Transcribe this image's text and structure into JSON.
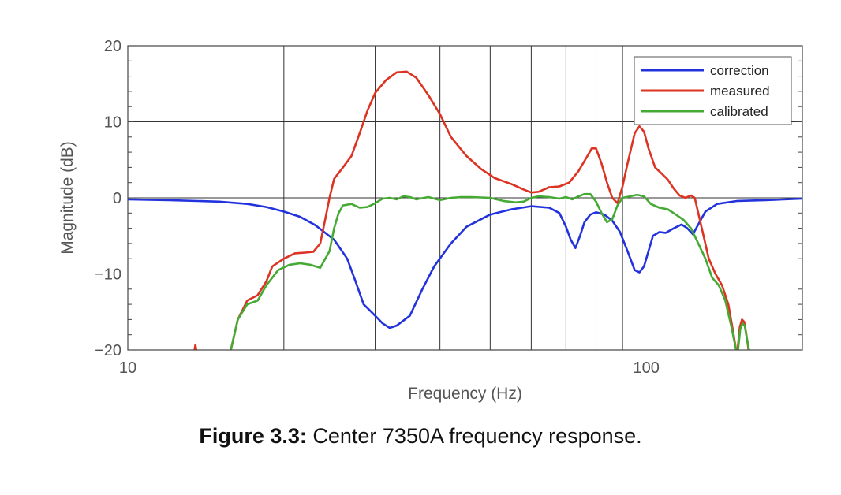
{
  "chart_data": {
    "type": "line",
    "xscale": "log",
    "xlim": [
      10,
      200
    ],
    "ylim": [
      -20,
      20
    ],
    "xticks": [
      10,
      100
    ],
    "xtick_labels": [
      "10",
      "100"
    ],
    "yticks": [
      -20,
      -10,
      0,
      10,
      20
    ],
    "ytick_labels": [
      "−20",
      "−10",
      "0",
      "10",
      "20"
    ],
    "vertical_gridlines": [
      20,
      30,
      40,
      50,
      60,
      70,
      80,
      90
    ],
    "grid": true,
    "xlabel": "Frequency (Hz)",
    "ylabel": "Magnitude (dB)",
    "legend_position": "top-right",
    "series": [
      {
        "name": "correction",
        "color": "#2233dd",
        "points": [
          [
            10,
            -0.2
          ],
          [
            12,
            -0.3
          ],
          [
            15,
            -0.5
          ],
          [
            17,
            -0.8
          ],
          [
            18.5,
            -1.2
          ],
          [
            20,
            -1.8
          ],
          [
            21.5,
            -2.5
          ],
          [
            23,
            -3.6
          ],
          [
            25,
            -5.5
          ],
          [
            26.5,
            -8
          ],
          [
            27.5,
            -11
          ],
          [
            28.5,
            -14
          ],
          [
            30,
            -15.5
          ],
          [
            31,
            -16.5
          ],
          [
            32,
            -17.1
          ],
          [
            33,
            -16.8
          ],
          [
            35,
            -15.5
          ],
          [
            37,
            -12
          ],
          [
            39,
            -9
          ],
          [
            42,
            -6
          ],
          [
            45,
            -3.8
          ],
          [
            50,
            -2.2
          ],
          [
            55,
            -1.5
          ],
          [
            60,
            -1.1
          ],
          [
            65,
            -1.3
          ],
          [
            68,
            -2
          ],
          [
            70,
            -3.8
          ],
          [
            71.5,
            -5.5
          ],
          [
            73,
            -6.6
          ],
          [
            74.5,
            -5
          ],
          [
            76,
            -3.2
          ],
          [
            78,
            -2.2
          ],
          [
            80,
            -1.9
          ],
          [
            83,
            -2.2
          ],
          [
            86,
            -3
          ],
          [
            89,
            -4.5
          ],
          [
            92,
            -7
          ],
          [
            95,
            -9.5
          ],
          [
            97,
            -9.8
          ],
          [
            99,
            -9
          ],
          [
            101,
            -7
          ],
          [
            103,
            -5
          ],
          [
            106,
            -4.5
          ],
          [
            109,
            -4.6
          ],
          [
            113,
            -4
          ],
          [
            117,
            -3.5
          ],
          [
            120,
            -4
          ],
          [
            123,
            -4.8
          ],
          [
            126,
            -3.5
          ],
          [
            130,
            -1.8
          ],
          [
            137,
            -0.8
          ],
          [
            150,
            -0.4
          ],
          [
            170,
            -0.3
          ],
          [
            200,
            -0.1
          ]
        ]
      },
      {
        "name": "measured",
        "color": "#dd3322",
        "points": [
          [
            15.8,
            -20
          ],
          [
            16.3,
            -16
          ],
          [
            17,
            -13.5
          ],
          [
            17.8,
            -12.8
          ],
          [
            18.5,
            -11
          ],
          [
            19,
            -9
          ],
          [
            20,
            -8
          ],
          [
            21,
            -7.3
          ],
          [
            22,
            -7.2
          ],
          [
            22.8,
            -7.1
          ],
          [
            23.5,
            -6
          ],
          [
            24,
            -3
          ],
          [
            24.5,
            0
          ],
          [
            25,
            2.5
          ],
          [
            26,
            4
          ],
          [
            27,
            5.5
          ],
          [
            28,
            8.5
          ],
          [
            29,
            11.5
          ],
          [
            30,
            13.8
          ],
          [
            31.5,
            15.5
          ],
          [
            33,
            16.5
          ],
          [
            34.5,
            16.6
          ],
          [
            36,
            15.8
          ],
          [
            38,
            13.5
          ],
          [
            40,
            11
          ],
          [
            42,
            8
          ],
          [
            45,
            5.5
          ],
          [
            48,
            3.8
          ],
          [
            51,
            2.6
          ],
          [
            55,
            1.8
          ],
          [
            58,
            1.1
          ],
          [
            60,
            0.7
          ],
          [
            62,
            0.8
          ],
          [
            65,
            1.4
          ],
          [
            68,
            1.5
          ],
          [
            71,
            2
          ],
          [
            74,
            3.5
          ],
          [
            77,
            5.5
          ],
          [
            78.5,
            6.5
          ],
          [
            80,
            6.5
          ],
          [
            82,
            4.5
          ],
          [
            84,
            2
          ],
          [
            86,
            0
          ],
          [
            88,
            -0.7
          ],
          [
            90,
            1.5
          ],
          [
            92,
            4.5
          ],
          [
            95,
            8.5
          ],
          [
            97,
            9.4
          ],
          [
            99,
            8.7
          ],
          [
            101,
            6.5
          ],
          [
            104,
            4
          ],
          [
            107,
            3.2
          ],
          [
            110,
            2.4
          ],
          [
            113,
            1.2
          ],
          [
            116,
            0.3
          ],
          [
            119,
            0
          ],
          [
            122,
            0.3
          ],
          [
            124,
            0
          ],
          [
            126,
            -2
          ],
          [
            129,
            -5
          ],
          [
            132,
            -8
          ],
          [
            136,
            -10
          ],
          [
            140,
            -11.5
          ],
          [
            144,
            -14
          ],
          [
            147,
            -17.5
          ],
          [
            149,
            -20
          ]
        ]
      },
      {
        "name": "calibrated",
        "color": "#44aa33",
        "points": [
          [
            15.8,
            -20
          ],
          [
            16.3,
            -16
          ],
          [
            17,
            -14
          ],
          [
            17.8,
            -13.5
          ],
          [
            18.5,
            -11.5
          ],
          [
            19.5,
            -9.5
          ],
          [
            20.5,
            -8.8
          ],
          [
            21.5,
            -8.6
          ],
          [
            22.5,
            -8.8
          ],
          [
            23.5,
            -9.2
          ],
          [
            24.5,
            -7
          ],
          [
            25,
            -4
          ],
          [
            25.5,
            -2
          ],
          [
            26,
            -1
          ],
          [
            27,
            -0.8
          ],
          [
            28,
            -1.3
          ],
          [
            29,
            -1.2
          ],
          [
            30,
            -0.7
          ],
          [
            31,
            -0.1
          ],
          [
            32,
            0
          ],
          [
            33,
            -0.2
          ],
          [
            34,
            0.2
          ],
          [
            35,
            0.1
          ],
          [
            36,
            -0.2
          ],
          [
            38,
            0.1
          ],
          [
            40,
            -0.3
          ],
          [
            42,
            0
          ],
          [
            44,
            0.1
          ],
          [
            46,
            0.1
          ],
          [
            50,
            0
          ],
          [
            53,
            -0.4
          ],
          [
            56,
            -0.6
          ],
          [
            58,
            -0.5
          ],
          [
            60,
            0
          ],
          [
            62,
            0.2
          ],
          [
            65,
            0.1
          ],
          [
            68,
            -0.1
          ],
          [
            70,
            0.1
          ],
          [
            72,
            -0.2
          ],
          [
            74,
            0.2
          ],
          [
            76,
            0.5
          ],
          [
            78,
            0.5
          ],
          [
            80,
            -0.5
          ],
          [
            82,
            -2
          ],
          [
            84,
            -3.2
          ],
          [
            86,
            -2.8
          ],
          [
            88,
            -1
          ],
          [
            90,
            0
          ],
          [
            93,
            0.2
          ],
          [
            96,
            0.4
          ],
          [
            99,
            0.2
          ],
          [
            102,
            -0.8
          ],
          [
            106,
            -1.3
          ],
          [
            110,
            -1.5
          ],
          [
            114,
            -2.2
          ],
          [
            118,
            -2.9
          ],
          [
            122,
            -4
          ],
          [
            126,
            -6
          ],
          [
            130,
            -8
          ],
          [
            134,
            -10.5
          ],
          [
            138,
            -11.5
          ],
          [
            142,
            -13.5
          ],
          [
            146,
            -17
          ],
          [
            149,
            -20
          ]
        ]
      },
      {
        "name": "measured-fragment",
        "color": "#dd3322",
        "points": [
          [
            13.45,
            -20
          ],
          [
            13.5,
            -19.3
          ],
          [
            13.55,
            -20
          ]
        ]
      },
      {
        "name": "peak-fragment-measured",
        "color": "#dd3322",
        "points": [
          [
            150,
            -20
          ],
          [
            151.5,
            -17
          ],
          [
            153,
            -16
          ],
          [
            154.5,
            -16.3
          ],
          [
            156,
            -18
          ],
          [
            157.5,
            -20
          ]
        ]
      },
      {
        "name": "peak-fragment-calibrated",
        "color": "#44aa33",
        "points": [
          [
            150.3,
            -20
          ],
          [
            151.8,
            -17.3
          ],
          [
            153.3,
            -16.5
          ],
          [
            154.8,
            -16.8
          ],
          [
            156.3,
            -18.4
          ],
          [
            157.8,
            -20
          ]
        ]
      }
    ],
    "legend": [
      "correction",
      "measured",
      "calibrated"
    ]
  },
  "caption": {
    "label": "Figure 3.3:",
    "text": " Center 7350A frequency response."
  }
}
